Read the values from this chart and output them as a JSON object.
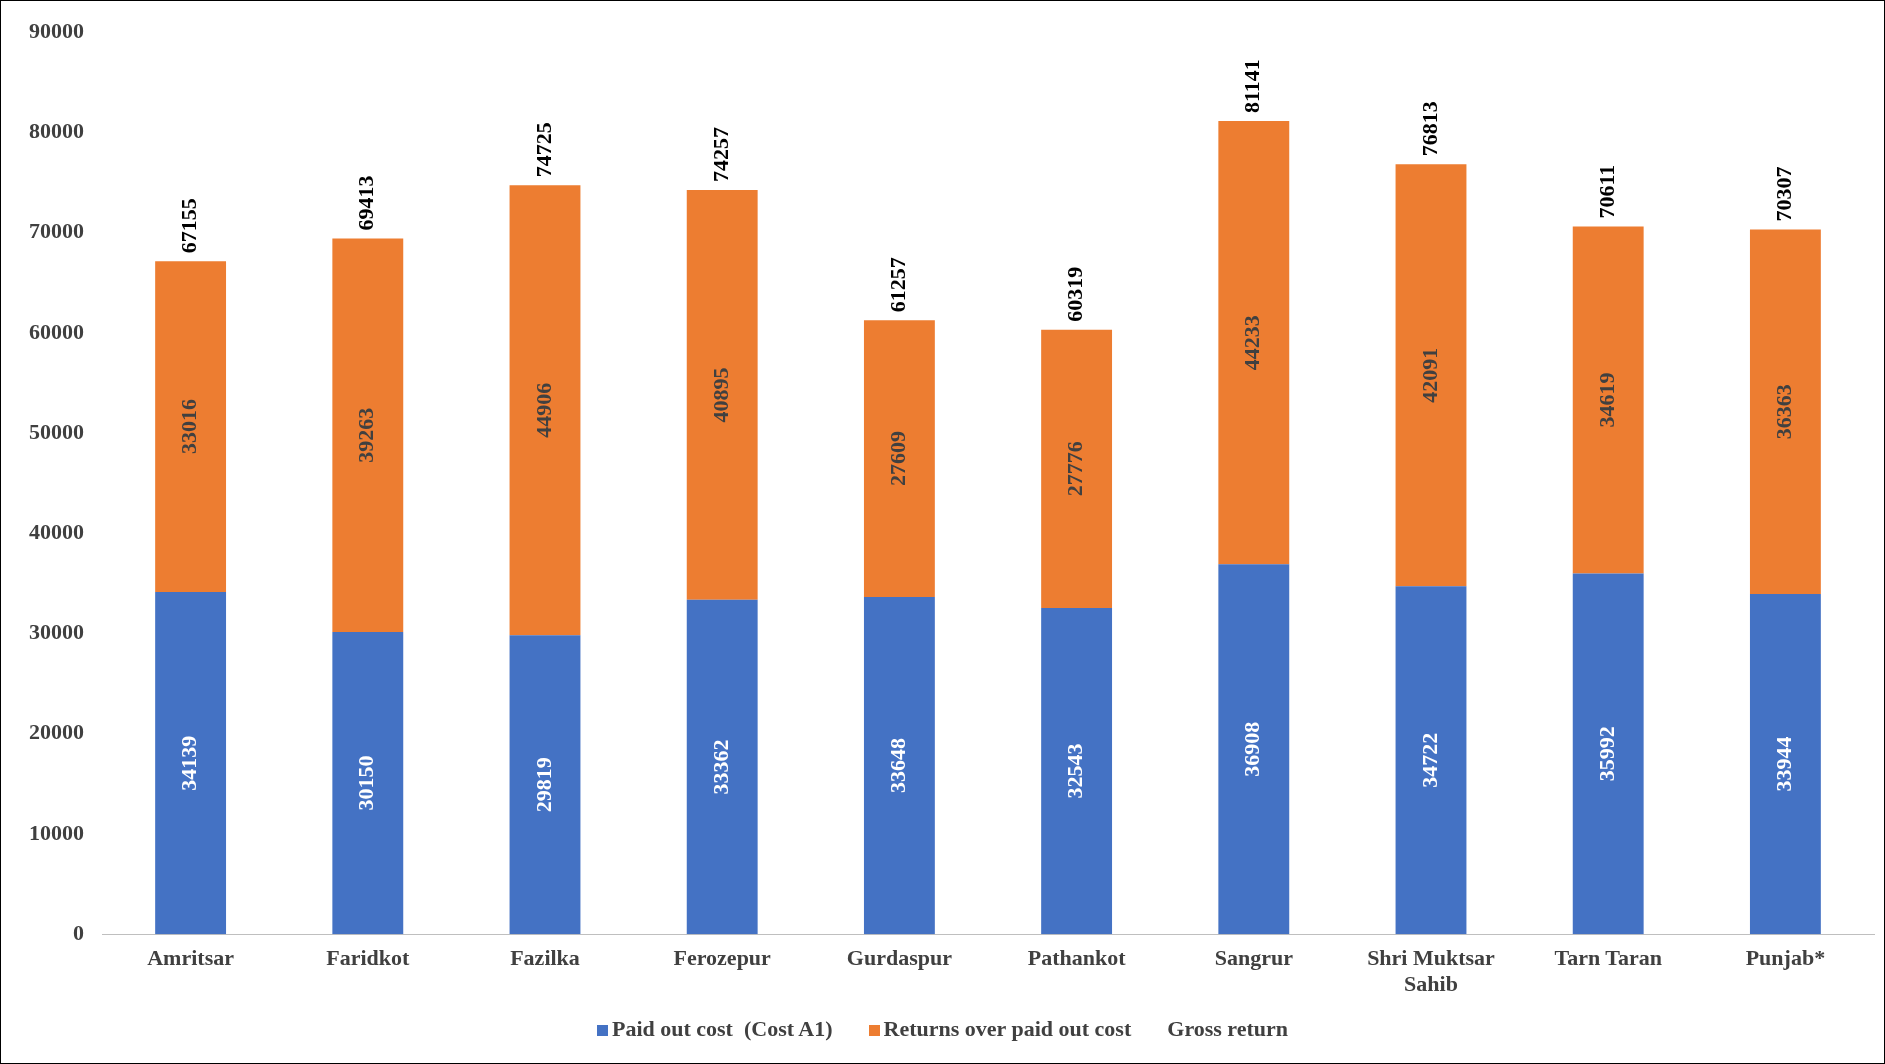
{
  "chart_data": {
    "type": "bar",
    "stacked": true,
    "data_labels": true,
    "grid": false,
    "legend": "bottom",
    "categories": [
      "Amritsar",
      "Faridkot",
      "Fazilka",
      "Ferozepur",
      "Gurdaspur",
      "Pathankot",
      "Sangrur",
      "Shri Muktsar Sahib",
      "Tarn Taran",
      "Punjab*"
    ],
    "series": [
      {
        "name": "Paid out cost  (Cost A1)",
        "color": "#4472c4",
        "values": [
          34139,
          30150,
          29819,
          33362,
          33648,
          32543,
          36908,
          34722,
          35992,
          33944
        ]
      },
      {
        "name": "Returns over paid out cost",
        "color": "#ed7d31",
        "values": [
          33016,
          39263,
          44906,
          40895,
          27609,
          27776,
          44233,
          42091,
          34619,
          36363
        ]
      }
    ],
    "totals": [
      "67155",
      "69413",
      "74725",
      "74257",
      "61257",
      "60319",
      "81141",
      "76813",
      "70611",
      "70307"
    ],
    "annotations": [
      "Gross return"
    ],
    "ylim": [
      0,
      90000
    ],
    "yticks": [
      0,
      10000,
      20000,
      30000,
      40000,
      50000,
      60000,
      70000,
      80000,
      90000
    ]
  }
}
